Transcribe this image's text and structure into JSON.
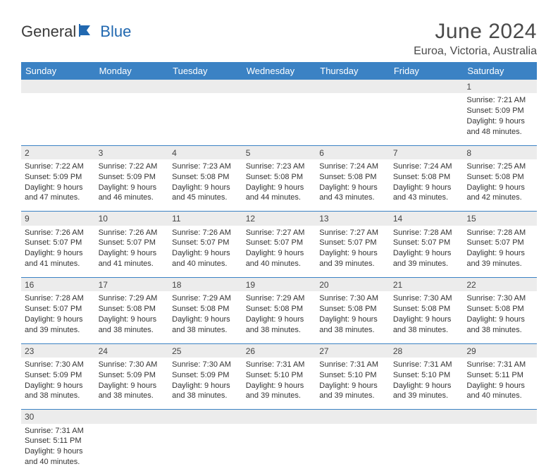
{
  "logo": {
    "part1": "General",
    "part2": "Blue"
  },
  "title": "June 2024",
  "location": "Euroa, Victoria, Australia",
  "colors": {
    "header_bg": "#3b82c4",
    "header_fg": "#ffffff",
    "daynum_bg": "#ececec",
    "border": "#3b82c4",
    "text": "#333333",
    "logo_gray": "#3a3a3a",
    "logo_blue": "#2168b0"
  },
  "weekdays": [
    "Sunday",
    "Monday",
    "Tuesday",
    "Wednesday",
    "Thursday",
    "Friday",
    "Saturday"
  ],
  "weeks": [
    [
      null,
      null,
      null,
      null,
      null,
      null,
      {
        "n": "1",
        "sr": "Sunrise: 7:21 AM",
        "ss": "Sunset: 5:09 PM",
        "dl": "Daylight: 9 hours and 48 minutes."
      }
    ],
    [
      {
        "n": "2",
        "sr": "Sunrise: 7:22 AM",
        "ss": "Sunset: 5:09 PM",
        "dl": "Daylight: 9 hours and 47 minutes."
      },
      {
        "n": "3",
        "sr": "Sunrise: 7:22 AM",
        "ss": "Sunset: 5:09 PM",
        "dl": "Daylight: 9 hours and 46 minutes."
      },
      {
        "n": "4",
        "sr": "Sunrise: 7:23 AM",
        "ss": "Sunset: 5:08 PM",
        "dl": "Daylight: 9 hours and 45 minutes."
      },
      {
        "n": "5",
        "sr": "Sunrise: 7:23 AM",
        "ss": "Sunset: 5:08 PM",
        "dl": "Daylight: 9 hours and 44 minutes."
      },
      {
        "n": "6",
        "sr": "Sunrise: 7:24 AM",
        "ss": "Sunset: 5:08 PM",
        "dl": "Daylight: 9 hours and 43 minutes."
      },
      {
        "n": "7",
        "sr": "Sunrise: 7:24 AM",
        "ss": "Sunset: 5:08 PM",
        "dl": "Daylight: 9 hours and 43 minutes."
      },
      {
        "n": "8",
        "sr": "Sunrise: 7:25 AM",
        "ss": "Sunset: 5:08 PM",
        "dl": "Daylight: 9 hours and 42 minutes."
      }
    ],
    [
      {
        "n": "9",
        "sr": "Sunrise: 7:26 AM",
        "ss": "Sunset: 5:07 PM",
        "dl": "Daylight: 9 hours and 41 minutes."
      },
      {
        "n": "10",
        "sr": "Sunrise: 7:26 AM",
        "ss": "Sunset: 5:07 PM",
        "dl": "Daylight: 9 hours and 41 minutes."
      },
      {
        "n": "11",
        "sr": "Sunrise: 7:26 AM",
        "ss": "Sunset: 5:07 PM",
        "dl": "Daylight: 9 hours and 40 minutes."
      },
      {
        "n": "12",
        "sr": "Sunrise: 7:27 AM",
        "ss": "Sunset: 5:07 PM",
        "dl": "Daylight: 9 hours and 40 minutes."
      },
      {
        "n": "13",
        "sr": "Sunrise: 7:27 AM",
        "ss": "Sunset: 5:07 PM",
        "dl": "Daylight: 9 hours and 39 minutes."
      },
      {
        "n": "14",
        "sr": "Sunrise: 7:28 AM",
        "ss": "Sunset: 5:07 PM",
        "dl": "Daylight: 9 hours and 39 minutes."
      },
      {
        "n": "15",
        "sr": "Sunrise: 7:28 AM",
        "ss": "Sunset: 5:07 PM",
        "dl": "Daylight: 9 hours and 39 minutes."
      }
    ],
    [
      {
        "n": "16",
        "sr": "Sunrise: 7:28 AM",
        "ss": "Sunset: 5:07 PM",
        "dl": "Daylight: 9 hours and 39 minutes."
      },
      {
        "n": "17",
        "sr": "Sunrise: 7:29 AM",
        "ss": "Sunset: 5:08 PM",
        "dl": "Daylight: 9 hours and 38 minutes."
      },
      {
        "n": "18",
        "sr": "Sunrise: 7:29 AM",
        "ss": "Sunset: 5:08 PM",
        "dl": "Daylight: 9 hours and 38 minutes."
      },
      {
        "n": "19",
        "sr": "Sunrise: 7:29 AM",
        "ss": "Sunset: 5:08 PM",
        "dl": "Daylight: 9 hours and 38 minutes."
      },
      {
        "n": "20",
        "sr": "Sunrise: 7:30 AM",
        "ss": "Sunset: 5:08 PM",
        "dl": "Daylight: 9 hours and 38 minutes."
      },
      {
        "n": "21",
        "sr": "Sunrise: 7:30 AM",
        "ss": "Sunset: 5:08 PM",
        "dl": "Daylight: 9 hours and 38 minutes."
      },
      {
        "n": "22",
        "sr": "Sunrise: 7:30 AM",
        "ss": "Sunset: 5:08 PM",
        "dl": "Daylight: 9 hours and 38 minutes."
      }
    ],
    [
      {
        "n": "23",
        "sr": "Sunrise: 7:30 AM",
        "ss": "Sunset: 5:09 PM",
        "dl": "Daylight: 9 hours and 38 minutes."
      },
      {
        "n": "24",
        "sr": "Sunrise: 7:30 AM",
        "ss": "Sunset: 5:09 PM",
        "dl": "Daylight: 9 hours and 38 minutes."
      },
      {
        "n": "25",
        "sr": "Sunrise: 7:30 AM",
        "ss": "Sunset: 5:09 PM",
        "dl": "Daylight: 9 hours and 38 minutes."
      },
      {
        "n": "26",
        "sr": "Sunrise: 7:31 AM",
        "ss": "Sunset: 5:10 PM",
        "dl": "Daylight: 9 hours and 39 minutes."
      },
      {
        "n": "27",
        "sr": "Sunrise: 7:31 AM",
        "ss": "Sunset: 5:10 PM",
        "dl": "Daylight: 9 hours and 39 minutes."
      },
      {
        "n": "28",
        "sr": "Sunrise: 7:31 AM",
        "ss": "Sunset: 5:10 PM",
        "dl": "Daylight: 9 hours and 39 minutes."
      },
      {
        "n": "29",
        "sr": "Sunrise: 7:31 AM",
        "ss": "Sunset: 5:11 PM",
        "dl": "Daylight: 9 hours and 40 minutes."
      }
    ],
    [
      {
        "n": "30",
        "sr": "Sunrise: 7:31 AM",
        "ss": "Sunset: 5:11 PM",
        "dl": "Daylight: 9 hours and 40 minutes."
      },
      null,
      null,
      null,
      null,
      null,
      null
    ]
  ]
}
